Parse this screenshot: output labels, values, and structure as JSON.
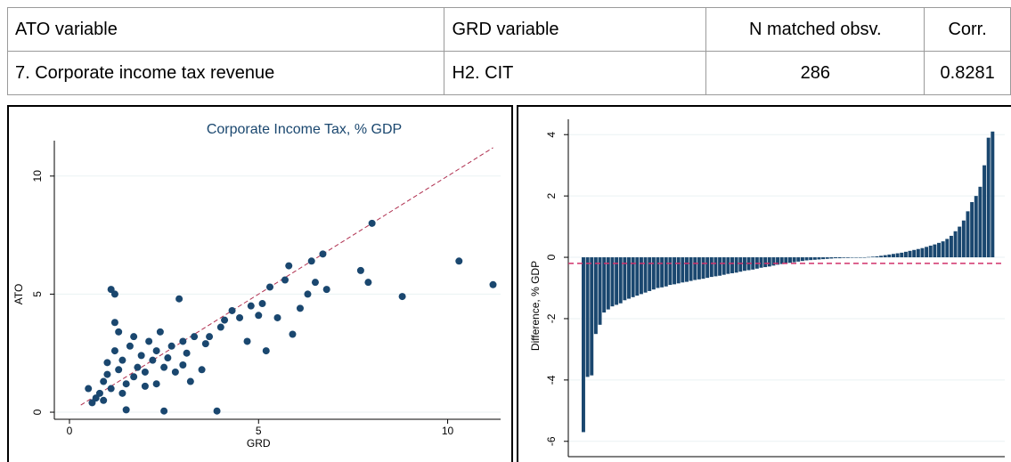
{
  "table": {
    "columns": [
      "ATO variable",
      "GRD variable",
      "N matched obsv.",
      "Corr."
    ],
    "rows": [
      [
        "7. Corporate income tax revenue",
        "H2. CIT",
        286,
        0.8281
      ]
    ]
  },
  "chart_data": [
    {
      "type": "scatter",
      "title": "Corporate Income Tax, % GDP",
      "x_label": "GRD",
      "y_label": "ATO",
      "color": "#1a476f",
      "grid": true,
      "xlim": [
        -0.4,
        11.4
      ],
      "ylim": [
        -0.3,
        11.5
      ],
      "xticks": [
        0,
        5,
        10
      ],
      "yticks": [
        0,
        5,
        10
      ],
      "ref_line": {
        "x": [
          0.3,
          11.2
        ],
        "y": [
          0.3,
          11.2
        ],
        "color": "#b03050"
      },
      "x": [
        0.5,
        0.6,
        0.7,
        0.8,
        0.9,
        0.9,
        1.0,
        1.0,
        1.1,
        1.1,
        1.2,
        1.2,
        1.2,
        1.3,
        1.3,
        1.4,
        1.4,
        1.5,
        1.5,
        1.6,
        1.7,
        1.7,
        1.8,
        1.9,
        2.0,
        2.0,
        2.1,
        2.2,
        2.3,
        2.3,
        2.4,
        2.5,
        2.5,
        2.6,
        2.7,
        2.8,
        2.9,
        3.0,
        3.0,
        3.1,
        3.2,
        3.3,
        3.5,
        3.6,
        3.7,
        3.9,
        4.0,
        4.1,
        4.3,
        4.5,
        4.7,
        4.8,
        5.0,
        5.1,
        5.2,
        5.3,
        5.5,
        5.7,
        5.8,
        5.9,
        6.1,
        6.3,
        6.4,
        6.5,
        6.7,
        6.8,
        7.7,
        8.0,
        7.9,
        8.8,
        10.3,
        11.2
      ],
      "values": [
        1.0,
        0.4,
        0.6,
        0.8,
        1.3,
        0.5,
        1.6,
        2.1,
        1.0,
        5.2,
        5.0,
        3.8,
        2.6,
        3.4,
        1.8,
        2.2,
        0.8,
        1.2,
        0.1,
        2.8,
        3.2,
        1.5,
        1.9,
        2.4,
        1.7,
        1.1,
        3.0,
        2.2,
        1.2,
        2.6,
        3.4,
        0.05,
        1.9,
        2.3,
        2.8,
        1.7,
        4.8,
        3.0,
        2.0,
        2.5,
        1.3,
        3.2,
        1.8,
        2.9,
        3.2,
        0.05,
        3.6,
        3.9,
        4.3,
        4.0,
        3.0,
        4.5,
        4.1,
        4.6,
        2.6,
        5.3,
        4.0,
        5.6,
        6.2,
        3.3,
        4.4,
        5.0,
        6.4,
        5.5,
        6.7,
        5.2,
        6.0,
        8.0,
        5.5,
        4.9,
        6.4,
        5.4
      ]
    },
    {
      "type": "bar",
      "y_label": "Difference, % GDP",
      "color": "#1a476f",
      "grid": true,
      "ylim": [
        -6.5,
        4.5
      ],
      "yticks": [
        -6,
        -4,
        -2,
        0,
        2,
        4
      ],
      "hline": {
        "value": -0.2,
        "color": "#d0306a"
      },
      "values": [
        -5.7,
        -3.9,
        -3.85,
        -2.5,
        -2.2,
        -1.8,
        -1.7,
        -1.6,
        -1.55,
        -1.5,
        -1.4,
        -1.35,
        -1.3,
        -1.25,
        -1.2,
        -1.15,
        -1.1,
        -1.05,
        -1.0,
        -0.98,
        -0.95,
        -0.9,
        -0.88,
        -0.85,
        -0.82,
        -0.8,
        -0.77,
        -0.74,
        -0.72,
        -0.7,
        -0.67,
        -0.64,
        -0.62,
        -0.6,
        -0.57,
        -0.54,
        -0.52,
        -0.5,
        -0.47,
        -0.44,
        -0.42,
        -0.4,
        -0.37,
        -0.34,
        -0.32,
        -0.3,
        -0.27,
        -0.24,
        -0.22,
        -0.2,
        -0.18,
        -0.16,
        -0.14,
        -0.12,
        -0.1,
        -0.09,
        -0.08,
        -0.07,
        -0.06,
        -0.05,
        -0.04,
        -0.03,
        -0.03,
        -0.02,
        -0.02,
        -0.01,
        -0.01,
        0,
        0,
        0.01,
        0.02,
        0.03,
        0.05,
        0.07,
        0.09,
        0.11,
        0.13,
        0.15,
        0.18,
        0.21,
        0.24,
        0.27,
        0.3,
        0.34,
        0.38,
        0.42,
        0.47,
        0.52,
        0.6,
        0.7,
        0.85,
        1.0,
        1.2,
        1.5,
        1.8,
        2.0,
        2.3,
        3.0,
        3.9,
        4.1
      ]
    }
  ]
}
